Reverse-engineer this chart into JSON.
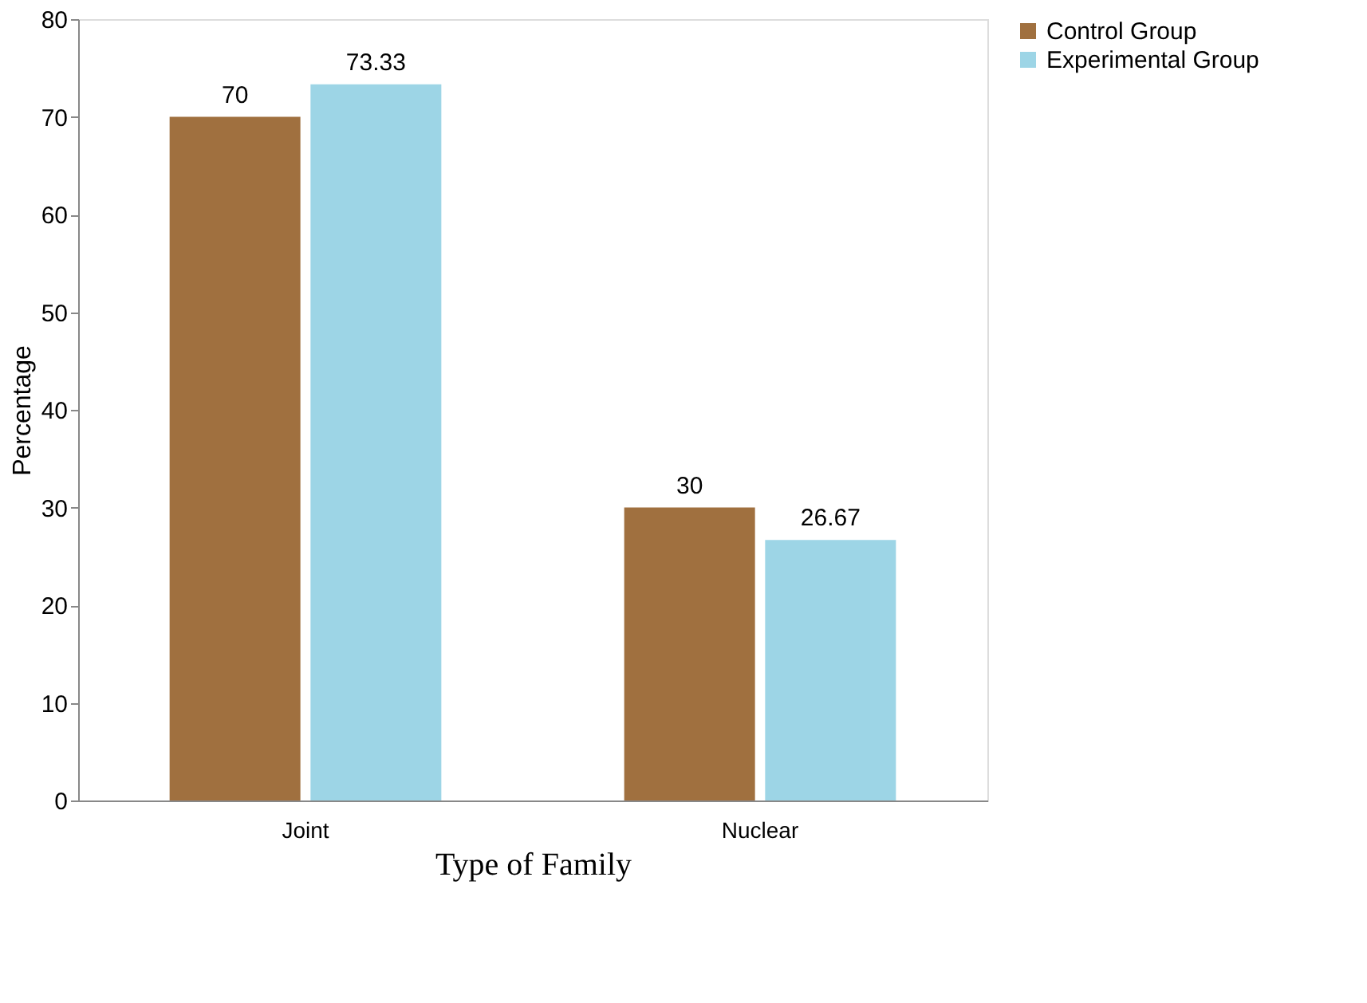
{
  "chart_data": {
    "type": "bar",
    "xlabel": "Type of Family",
    "ylabel": "Percentage",
    "categories": [
      "Joint",
      "Nuclear"
    ],
    "series": [
      {
        "name": "Control Group",
        "color": "#a0703f",
        "values": [
          70,
          30
        ]
      },
      {
        "name": "Experimental Group",
        "color": "#9dd5e6",
        "values": [
          73.33,
          26.67
        ]
      }
    ],
    "ylim": [
      0,
      80
    ],
    "yticks": [
      0,
      10,
      20,
      30,
      40,
      50,
      60,
      70,
      80
    ],
    "grid": false,
    "legend": "top right",
    "data_labels": true
  }
}
